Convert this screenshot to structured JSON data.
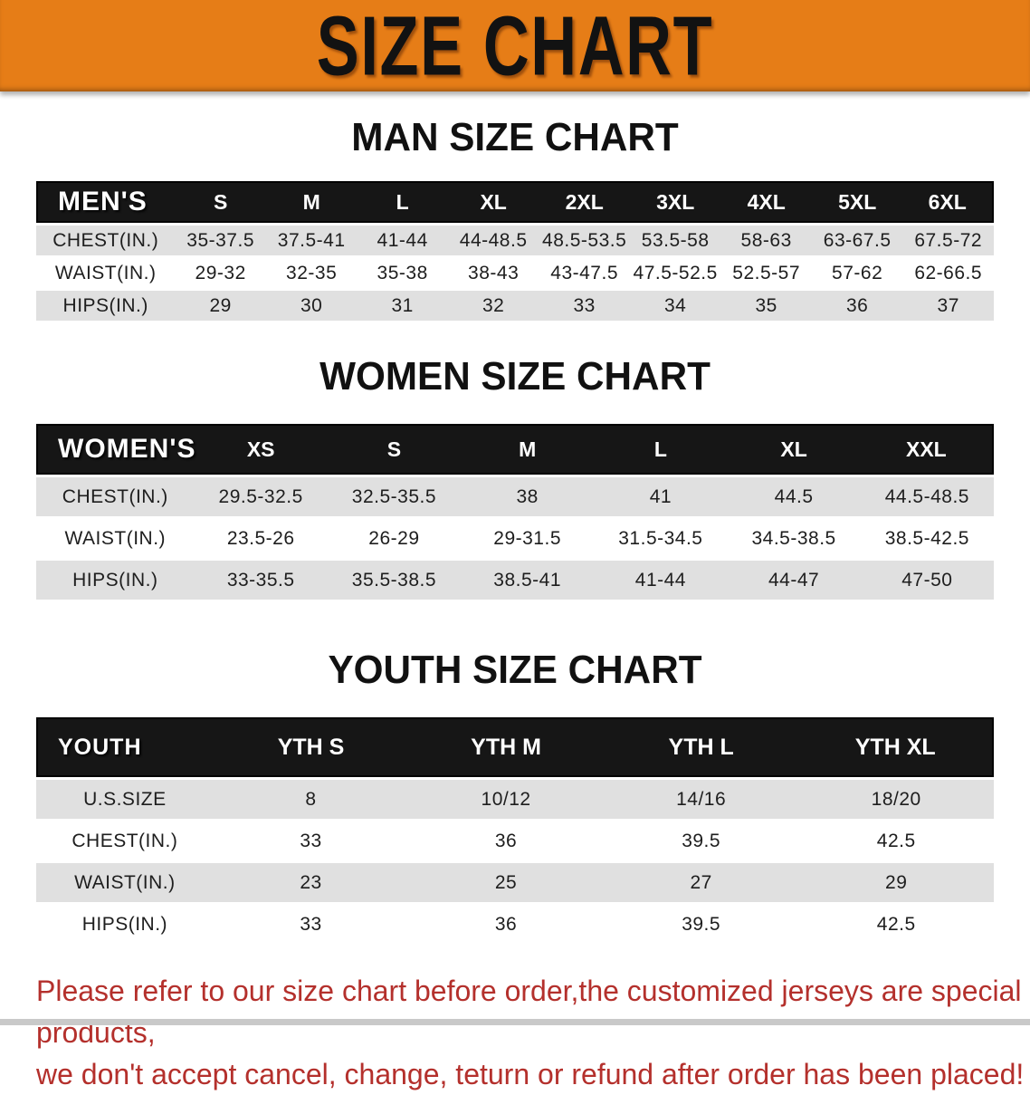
{
  "banner": {
    "title": "SIZE CHART"
  },
  "sections": [
    {
      "id": "men",
      "heading": "MAN SIZE CHART",
      "table": {
        "header_label": "MEN'S",
        "columns": [
          "S",
          "M",
          "L",
          "XL",
          "2XL",
          "3XL",
          "4XL",
          "5XL",
          "6XL"
        ],
        "rows": [
          {
            "label": "CHEST(IN.)",
            "values": [
              "35-37.5",
              "37.5-41",
              "41-44",
              "44-48.5",
              "48.5-53.5",
              "53.5-58",
              "58-63",
              "63-67.5",
              "67.5-72"
            ]
          },
          {
            "label": "WAIST(IN.)",
            "values": [
              "29-32",
              "32-35",
              "35-38",
              "38-43",
              "43-47.5",
              "47.5-52.5",
              "52.5-57",
              "57-62",
              "62-66.5"
            ]
          },
          {
            "label": "HIPS(IN.)",
            "values": [
              "29",
              "30",
              "31",
              "32",
              "33",
              "34",
              "35",
              "36",
              "37"
            ]
          }
        ]
      }
    },
    {
      "id": "women",
      "heading": "WOMEN SIZE CHART",
      "table": {
        "header_label": "WOMEN'S",
        "columns": [
          "XS",
          "S",
          "M",
          "L",
          "XL",
          "XXL"
        ],
        "rows": [
          {
            "label": "CHEST(IN.)",
            "values": [
              "29.5-32.5",
              "32.5-35.5",
              "38",
              "41",
              "44.5",
              "44.5-48.5"
            ]
          },
          {
            "label": "WAIST(IN.)",
            "values": [
              "23.5-26",
              "26-29",
              "29-31.5",
              "31.5-34.5",
              "34.5-38.5",
              "38.5-42.5"
            ]
          },
          {
            "label": "HIPS(IN.)",
            "values": [
              "33-35.5",
              "35.5-38.5",
              "38.5-41",
              "41-44",
              "44-47",
              "47-50"
            ]
          }
        ]
      }
    },
    {
      "id": "youth",
      "heading": "YOUTH SIZE CHART",
      "table": {
        "header_label": "YOUTH",
        "columns": [
          "YTH S",
          "YTH M",
          "YTH L",
          "YTH XL"
        ],
        "rows": [
          {
            "label": "U.S.SIZE",
            "values": [
              "8",
              "10/12",
              "14/16",
              "18/20"
            ]
          },
          {
            "label": "CHEST(IN.)",
            "values": [
              "33",
              "36",
              "39.5",
              "42.5"
            ]
          },
          {
            "label": "WAIST(IN.)",
            "values": [
              "23",
              "25",
              "27",
              "29"
            ]
          },
          {
            "label": "HIPS(IN.)",
            "values": [
              "33",
              "36",
              "39.5",
              "42.5"
            ]
          }
        ]
      }
    }
  ],
  "disclaimer": {
    "line1": "Please refer to our size chart before order,the customized jerseys are special products,",
    "line2": "we don't accept cancel, change, teturn or refund after order has been placed!"
  },
  "colors": {
    "banner_orange": "#e67d17",
    "header_black": "#161616",
    "row_gray": "#e0e0e0",
    "disclaimer_red": "#b4302c"
  }
}
